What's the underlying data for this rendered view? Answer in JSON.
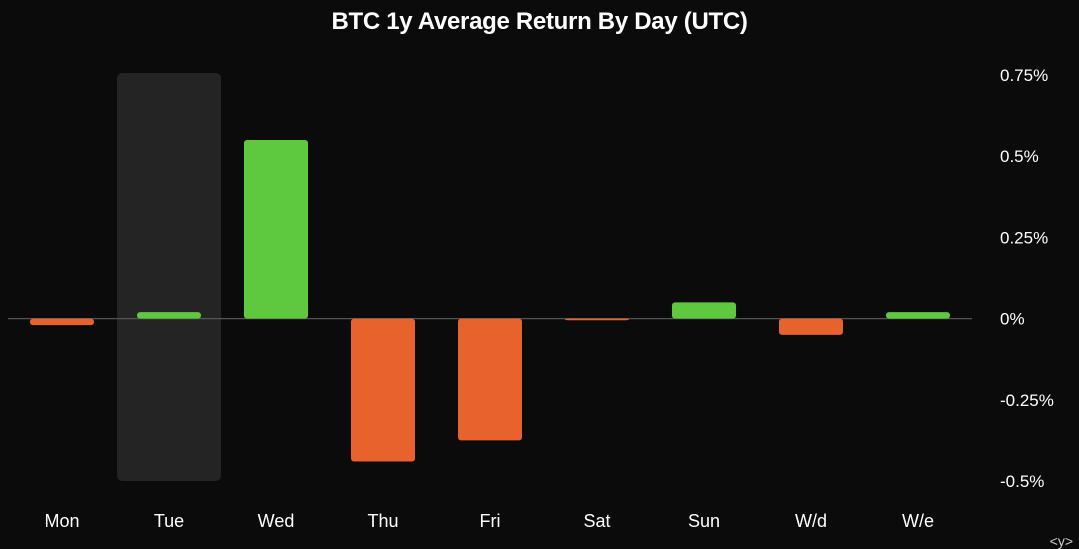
{
  "chart_data": {
    "type": "bar",
    "title": "BTC 1y Average Return By Day (UTC)",
    "categories": [
      "Mon",
      "Tue",
      "Wed",
      "Thu",
      "Fri",
      "Sat",
      "Sun",
      "W/d",
      "W/e"
    ],
    "values": [
      -0.02,
      0.02,
      0.55,
      -0.44,
      -0.375,
      -0.005,
      0.05,
      -0.05,
      0.02
    ],
    "ylim": [
      -0.5,
      0.75
    ],
    "y_ticks": [
      {
        "value": 0.75,
        "label": "0.75%"
      },
      {
        "value": 0.5,
        "label": "0.5%"
      },
      {
        "value": 0.25,
        "label": "0.25%"
      },
      {
        "value": 0,
        "label": "0%"
      },
      {
        "value": -0.25,
        "label": "-0.25%"
      },
      {
        "value": -0.5,
        "label": "-0.5%"
      }
    ],
    "y_axis_side": "right",
    "highlighted_category": "Tue",
    "grid": false,
    "colors": {
      "positive": "#5ec83f",
      "negative": "#e8622e",
      "highlight": "#242424",
      "zero_line": "#555555",
      "background": "#0b0b0b",
      "text": "#ffffff"
    }
  },
  "corner_glyph": "<y>"
}
